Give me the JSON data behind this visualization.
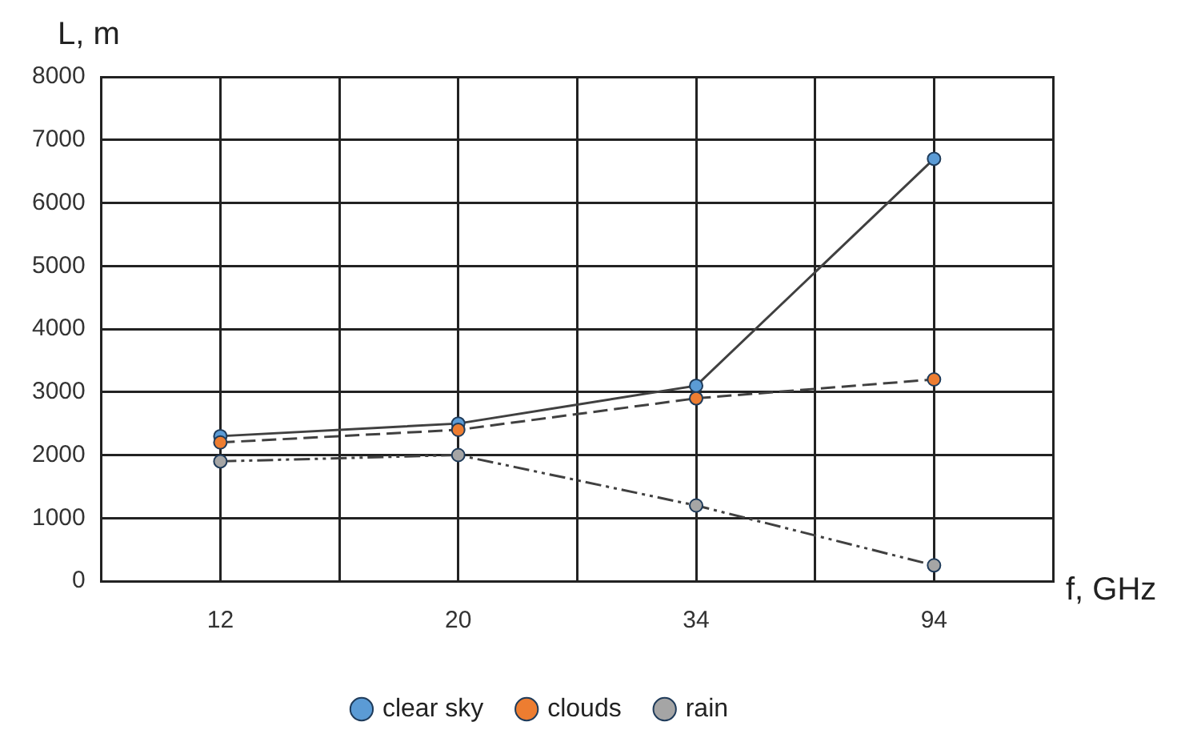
{
  "chart_data": {
    "type": "line",
    "xlabel": "f, GHz",
    "ylabel": "L, m",
    "categories": [
      "12",
      "20",
      "34",
      "94"
    ],
    "series": [
      {
        "name": "clear sky",
        "color": "#5b9bd5",
        "values": [
          2300,
          2500,
          3100,
          6700
        ],
        "line_style": "solid"
      },
      {
        "name": "clouds",
        "color": "#ed7d31",
        "values": [
          2200,
          2400,
          2900,
          3200
        ],
        "line_style": "dashed"
      },
      {
        "name": "rain",
        "color": "#a5a5a5",
        "values": [
          1900,
          2000,
          1200,
          250
        ],
        "line_style": "dotted"
      }
    ],
    "ylim": [
      0,
      8000
    ],
    "yticks": [
      0,
      1000,
      2000,
      3000,
      4000,
      5000,
      6000,
      7000,
      8000
    ],
    "grid": true,
    "legend": "bottom",
    "marker": "circle"
  }
}
